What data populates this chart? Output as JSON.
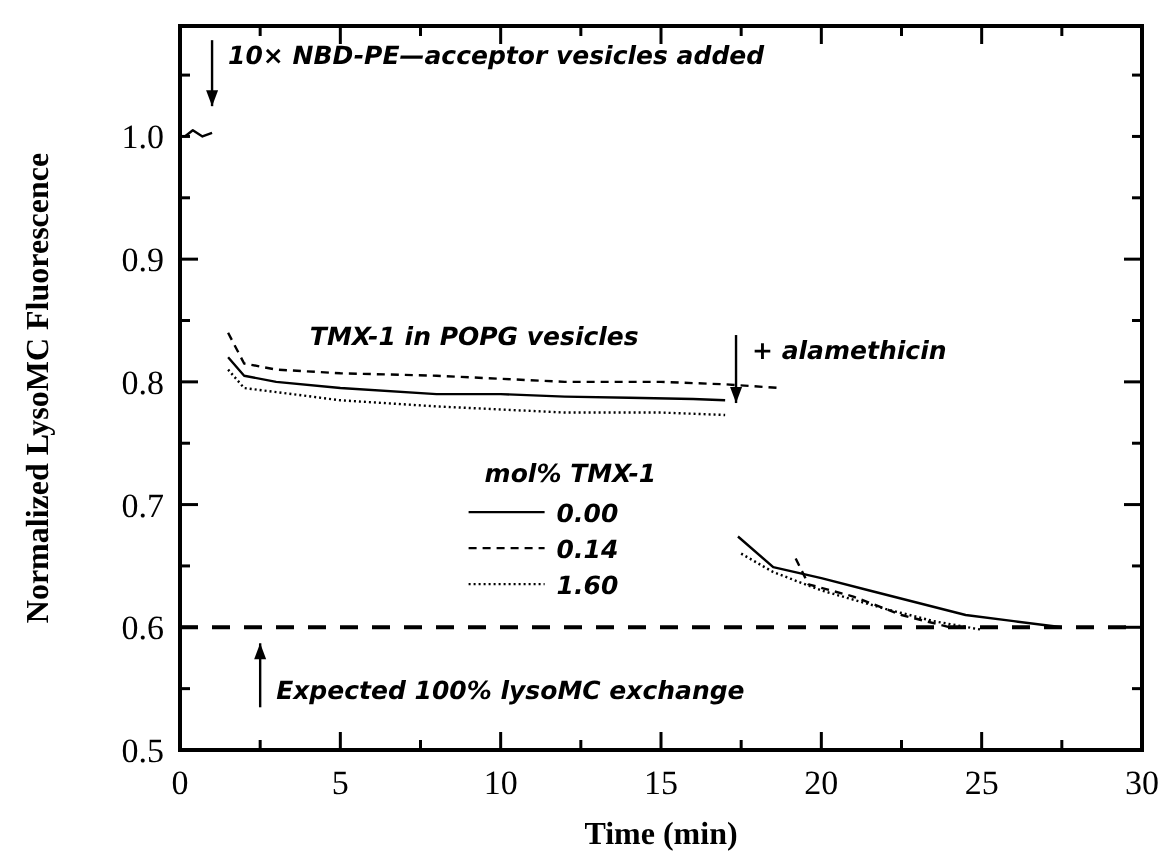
{
  "chart_data": {
    "type": "line",
    "xlabel": "Time (min)",
    "ylabel": "Normalized LysoMC Fluorescence",
    "legend_title": "mol% TMX-1",
    "legend": "center",
    "grid": false,
    "xlim": [
      0,
      30
    ],
    "xticks": [
      0,
      {
        "value": 2.5,
        "label": null
      },
      5,
      {
        "value": 7.5,
        "label": null
      },
      10,
      {
        "value": 12.5,
        "label": null
      },
      15,
      {
        "value": 17.5,
        "label": null
      },
      20,
      {
        "value": 22.5,
        "label": null
      },
      25,
      {
        "value": 27.5,
        "label": null
      },
      30
    ],
    "ylim": [
      0.5,
      1.09
    ],
    "yticks": [
      0.5,
      {
        "value": 0.55,
        "label": null
      },
      0.6,
      {
        "value": 0.65,
        "label": null
      },
      0.7,
      {
        "value": 0.75,
        "label": null
      },
      0.8,
      {
        "value": 0.85,
        "label": null
      },
      0.9,
      {
        "value": 0.95,
        "label": null
      },
      {
        "value": 1.0,
        "label": "1.0"
      },
      {
        "value": 1.05,
        "label": null
      }
    ],
    "series": [
      {
        "name": "0.00",
        "color": "#000000",
        "line_style": "solid",
        "x": [
          0.15,
          0.4,
          0.7,
          1.0,
          null,
          1.5,
          2,
          3,
          5,
          8,
          10,
          12,
          14,
          16,
          17,
          null,
          17.4,
          18.5,
          20,
          21.5,
          23,
          24.5,
          26,
          27.5
        ],
        "values": [
          1.0,
          1.005,
          1.0,
          1.003,
          null,
          0.82,
          0.805,
          0.8,
          0.795,
          0.79,
          0.79,
          0.788,
          0.787,
          0.786,
          0.785,
          null,
          0.674,
          0.649,
          0.64,
          0.63,
          0.62,
          0.61,
          0.605,
          0.6
        ]
      },
      {
        "name": "0.14",
        "color": "#000000",
        "line_style": "dashed",
        "x": [
          1.5,
          2,
          3,
          5,
          8,
          12,
          15,
          17,
          18.7,
          null,
          19.2,
          19.6,
          21,
          22.5,
          24
        ],
        "values": [
          0.84,
          0.815,
          0.81,
          0.807,
          0.805,
          0.8,
          0.8,
          0.798,
          0.795,
          null,
          0.656,
          0.635,
          0.625,
          0.61,
          0.6
        ]
      },
      {
        "name": "1.60",
        "color": "#000000",
        "line_style": "dotted",
        "x": [
          1.5,
          2,
          5,
          8,
          12,
          15,
          17,
          null,
          17.5,
          18.5,
          20,
          22,
          23.5,
          25
        ],
        "values": [
          0.81,
          0.795,
          0.785,
          0.78,
          0.775,
          0.775,
          0.773,
          null,
          0.66,
          0.645,
          0.63,
          0.615,
          0.605,
          0.598
        ]
      }
    ],
    "ref_lines": [
      {
        "axis": "y",
        "value": 0.6,
        "color": "#000000",
        "line_style": "dashed"
      }
    ],
    "annotations": [
      {
        "text": "10× NBD-PE—acceptor vesicles added",
        "x": 1.0,
        "y": 1.01
      },
      "+ alamethicin",
      {
        "text": "Expected 100% lysoMC exchange",
        "x": 2.5,
        "y": 0.6
      },
      "TMX-1 in POPG vesicles"
    ]
  }
}
